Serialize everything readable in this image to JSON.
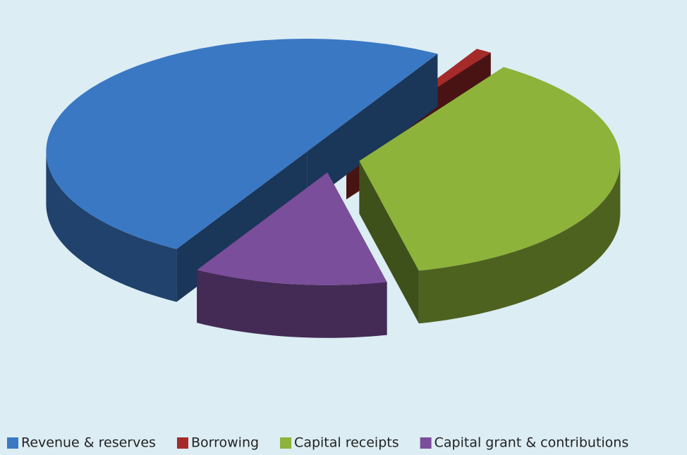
{
  "chart_data": {
    "type": "pie3d",
    "categories": [
      "Revenue & reserves",
      "Borrowing",
      "Capital receipts",
      "Capital grant & contributions"
    ],
    "values": [
      50,
      1,
      37,
      12
    ],
    "colors": [
      "#3a78c4",
      "#a52a2a",
      "#8db33a",
      "#7a4e9a"
    ],
    "legend": "bottom"
  }
}
